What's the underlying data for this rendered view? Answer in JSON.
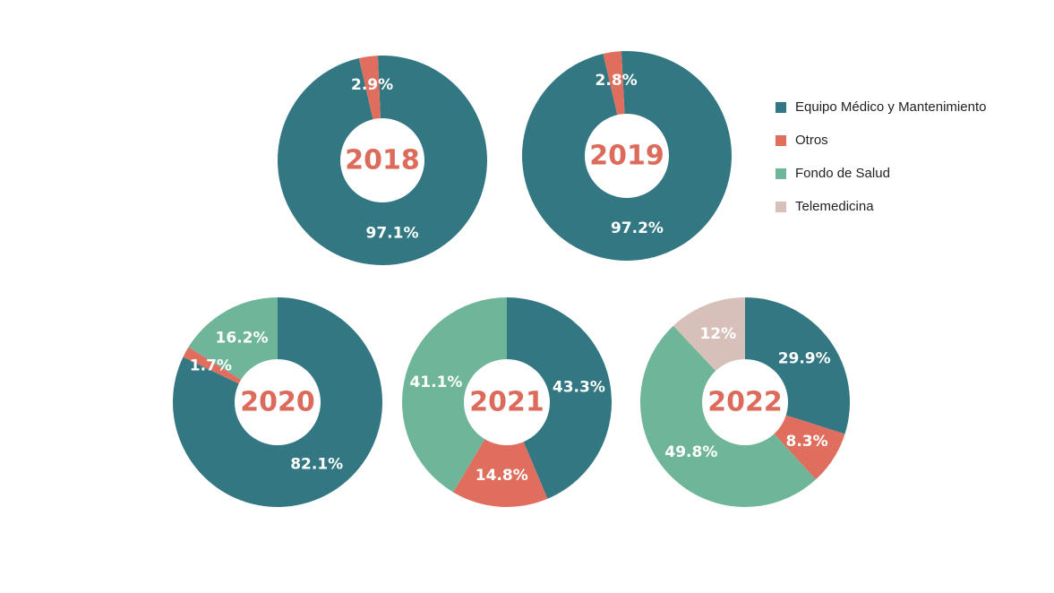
{
  "colors": {
    "Equipo Médico y Mantenimiento": "#327782",
    "Otros": "#df6e5e",
    "Fondo de Salud": "#6fb59a",
    "Telemedicina": "#d6c0b9",
    "center_text": "#dc6b5c"
  },
  "legend": {
    "placement": "right",
    "items": [
      {
        "label": "Equipo Médico y Mantenimiento"
      },
      {
        "label": "Otros"
      },
      {
        "label": "Fondo de Salud"
      },
      {
        "label": "Telemedicina"
      }
    ]
  },
  "chart_data": [
    {
      "type": "pie",
      "center_label": "2018",
      "slices": [
        {
          "category": "Equipo Médico y Mantenimiento",
          "value": 97.1,
          "label": "97.1%"
        },
        {
          "category": "Otros",
          "value": 2.9,
          "label": "2.9%"
        }
      ]
    },
    {
      "type": "pie",
      "center_label": "2019",
      "slices": [
        {
          "category": "Equipo Médico y Mantenimiento",
          "value": 97.2,
          "label": "97.2%"
        },
        {
          "category": "Otros",
          "value": 2.8,
          "label": "2.8%"
        }
      ]
    },
    {
      "type": "pie",
      "center_label": "2020",
      "slices": [
        {
          "category": "Equipo Médico y Mantenimiento",
          "value": 82.1,
          "label": "82.1%"
        },
        {
          "category": "Otros",
          "value": 1.7,
          "label": "1.7%"
        },
        {
          "category": "Fondo de Salud",
          "value": 16.2,
          "label": "16.2%"
        }
      ]
    },
    {
      "type": "pie",
      "center_label": "2021",
      "slices": [
        {
          "category": "Equipo Médico y Mantenimiento",
          "value": 43.3,
          "label": "43.3%"
        },
        {
          "category": "Otros",
          "value": 14.8,
          "label": "14.8%"
        },
        {
          "category": "Fondo de Salud",
          "value": 41.1,
          "label": "41.1%"
        }
      ]
    },
    {
      "type": "pie",
      "center_label": "2022",
      "slices": [
        {
          "category": "Equipo Médico y Mantenimiento",
          "value": 29.9,
          "label": "29.9%"
        },
        {
          "category": "Otros",
          "value": 8.3,
          "label": "8.3%"
        },
        {
          "category": "Fondo de Salud",
          "value": 49.8,
          "label": "49.8%"
        },
        {
          "category": "Telemedicina",
          "value": 12,
          "label": "12%"
        }
      ]
    }
  ]
}
